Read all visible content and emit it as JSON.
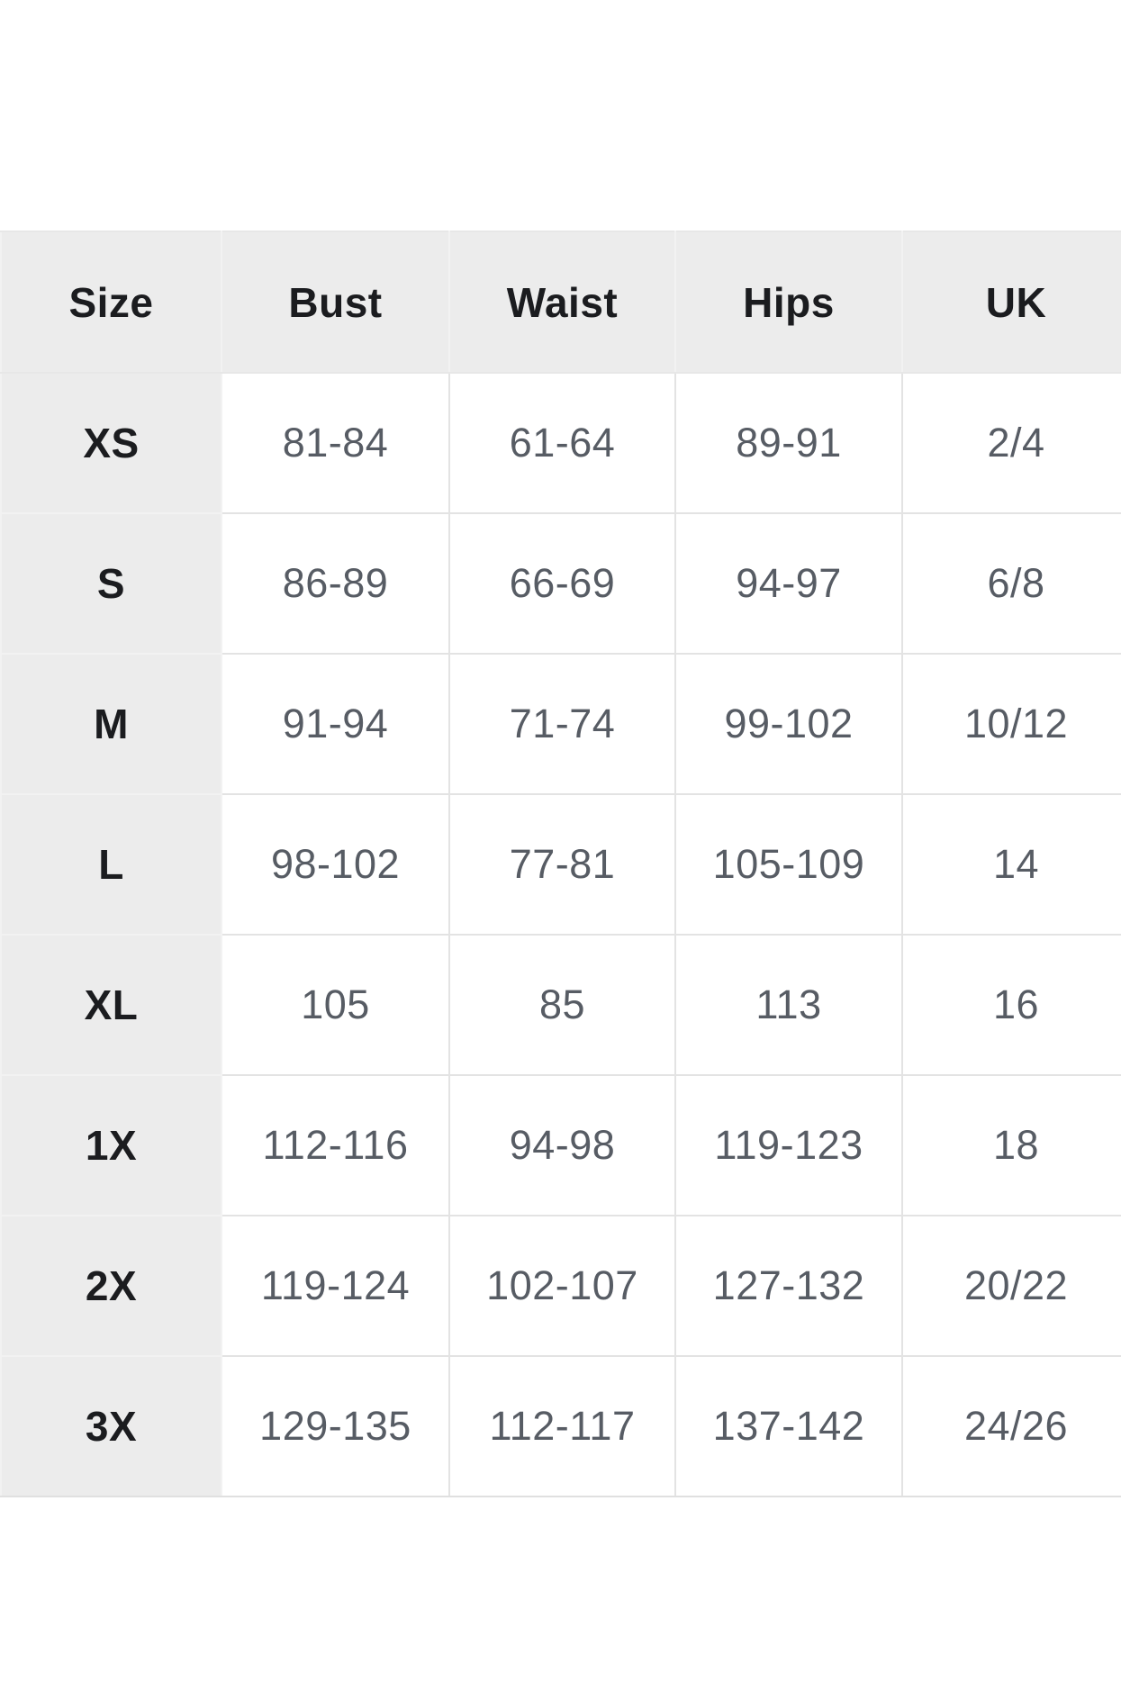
{
  "colors": {
    "header_bg": "#ececec",
    "cell_bg": "#ffffff",
    "page_bg": "#ffffff",
    "grid_line": "#e3e3e3",
    "grid_light": "#f2f2f2",
    "label_text": "#1b1c1f",
    "data_text": "#575c64"
  },
  "chart_data": {
    "type": "table",
    "columns": [
      "Size",
      "Bust",
      "Waist",
      "Hips",
      "UK"
    ],
    "rows": [
      [
        "XS",
        "81-84",
        "61-64",
        "89-91",
        "2/4"
      ],
      [
        "S",
        "86-89",
        "66-69",
        "94-97",
        "6/8"
      ],
      [
        "M",
        "91-94",
        "71-74",
        "99-102",
        "10/12"
      ],
      [
        "L",
        "98-102",
        "77-81",
        "105-109",
        "14"
      ],
      [
        "XL",
        "105",
        "85",
        "113",
        "16"
      ],
      [
        "1X",
        "112-116",
        "94-98",
        "119-123",
        "18"
      ],
      [
        "2X",
        "119-124",
        "102-107",
        "127-132",
        "20/22"
      ],
      [
        "3X",
        "129-135",
        "112-117",
        "137-142",
        "24/26"
      ]
    ]
  }
}
